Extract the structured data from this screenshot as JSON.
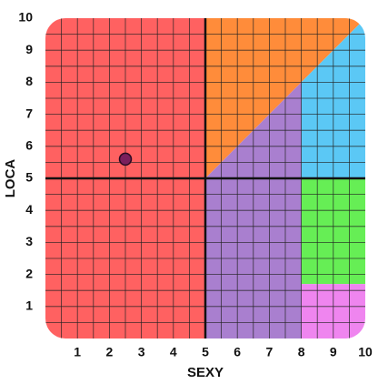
{
  "chart_data": {
    "type": "scatter",
    "x_label": "SEXY",
    "y_label": "LOCA",
    "x": [
      2.5
    ],
    "y": [
      5.6
    ],
    "color": "#7a1f5c",
    "xlim": [
      0,
      10
    ],
    "ylim": [
      0,
      10
    ],
    "xticks": [
      1,
      2,
      3,
      4,
      5,
      6,
      7,
      8,
      9,
      10
    ],
    "yticks": [
      1,
      2,
      3,
      4,
      5,
      6,
      7,
      8,
      9,
      10
    ],
    "grid": true,
    "grid_step": 0.5,
    "axis_lines": {
      "x": 5,
      "y": 5
    },
    "regions": [
      {
        "color": "#ff6161",
        "points": [
          [
            0,
            0
          ],
          [
            5,
            0
          ],
          [
            5,
            10
          ],
          [
            0,
            10
          ]
        ]
      },
      {
        "color": "#ff8c3a",
        "points": [
          [
            5,
            5
          ],
          [
            10,
            10
          ],
          [
            5,
            10
          ]
        ]
      },
      {
        "color": "#5bc8f5",
        "points": [
          [
            8,
            8
          ],
          [
            10,
            10
          ],
          [
            10,
            5
          ],
          [
            8,
            5
          ]
        ]
      },
      {
        "color": "#a97fcf",
        "points": [
          [
            5,
            0
          ],
          [
            8,
            0
          ],
          [
            8,
            8
          ],
          [
            5,
            5
          ]
        ]
      },
      {
        "color": "#66ee55",
        "points": [
          [
            8,
            1.7
          ],
          [
            10,
            1.7
          ],
          [
            10,
            5
          ],
          [
            8,
            5
          ]
        ]
      },
      {
        "color": "#ef85ef",
        "points": [
          [
            8,
            0
          ],
          [
            10,
            0
          ],
          [
            10,
            1.7
          ],
          [
            8,
            1.7
          ]
        ]
      }
    ]
  }
}
